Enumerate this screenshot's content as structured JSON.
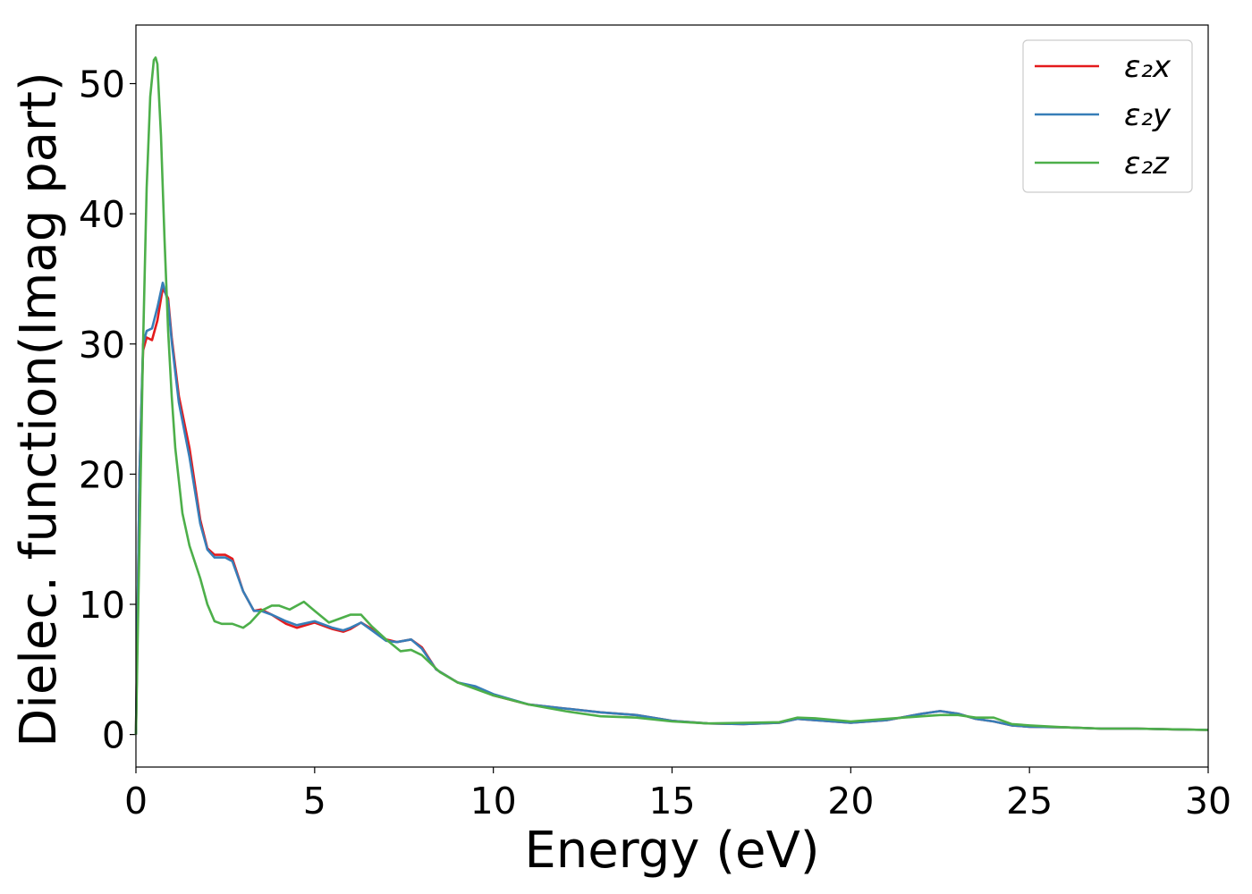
{
  "chart_data": {
    "type": "line",
    "title": "",
    "xlabel": "Energy (eV)",
    "ylabel": "Dielec. function(Imag part)",
    "xlim": [
      0,
      30
    ],
    "ylim": [
      -2.5,
      54.5
    ],
    "xticks": [
      0,
      5,
      10,
      15,
      20,
      25,
      30
    ],
    "xtick_labels": [
      "0",
      "5",
      "10",
      "15",
      "20",
      "25",
      "30"
    ],
    "yticks": [
      0,
      10,
      20,
      30,
      40,
      50
    ],
    "ytick_labels": [
      "0",
      "10",
      "20",
      "30",
      "40",
      "50"
    ],
    "grid": false,
    "legend_position": "top-right",
    "series": [
      {
        "name": "ε₂x",
        "color": "#e41a1c",
        "x": [
          0,
          0.1,
          0.2,
          0.3,
          0.45,
          0.6,
          0.75,
          0.9,
          1.0,
          1.2,
          1.5,
          1.8,
          2.0,
          2.2,
          2.5,
          2.7,
          3.0,
          3.3,
          3.5,
          3.8,
          4.2,
          4.5,
          5.0,
          5.5,
          5.8,
          6.0,
          6.3,
          6.6,
          7.0,
          7.3,
          7.7,
          8.0,
          8.4,
          9.0,
          9.5,
          10.0,
          11.0,
          12.0,
          13.0,
          14.0,
          15.0,
          16.0,
          17.0,
          18.0,
          18.5,
          19.0,
          20.0,
          21.0,
          22.0,
          22.5,
          23.0,
          23.5,
          24.0,
          24.5,
          25.0,
          26.0,
          27.0,
          28.0,
          29.0,
          30.0
        ],
        "y": [
          0,
          20,
          29.5,
          30.5,
          30.3,
          31.8,
          34.3,
          33.5,
          30.5,
          26,
          22,
          16.5,
          14.3,
          13.8,
          13.8,
          13.5,
          11,
          9.5,
          9.6,
          9.2,
          8.5,
          8.2,
          8.6,
          8.1,
          7.9,
          8.1,
          8.6,
          8.1,
          7.3,
          7.1,
          7.3,
          6.7,
          5.0,
          4.0,
          3.6,
          3.0,
          2.3,
          2.0,
          1.7,
          1.5,
          1.05,
          0.85,
          0.8,
          0.9,
          1.2,
          1.1,
          0.9,
          1.1,
          1.6,
          1.8,
          1.6,
          1.2,
          1.0,
          0.7,
          0.6,
          0.55,
          0.45,
          0.45,
          0.4,
          0.35
        ]
      },
      {
        "name": "ε₂y",
        "color": "#377eb8",
        "x": [
          0,
          0.1,
          0.2,
          0.3,
          0.45,
          0.6,
          0.75,
          0.9,
          1.0,
          1.2,
          1.5,
          1.8,
          2.0,
          2.2,
          2.5,
          2.7,
          3.0,
          3.3,
          3.5,
          3.8,
          4.2,
          4.5,
          5.0,
          5.5,
          5.8,
          6.0,
          6.3,
          6.6,
          7.0,
          7.3,
          7.7,
          8.0,
          8.4,
          9.0,
          9.5,
          10.0,
          11.0,
          12.0,
          13.0,
          14.0,
          15.0,
          16.0,
          17.0,
          18.0,
          18.5,
          19.0,
          20.0,
          21.0,
          22.0,
          22.5,
          23.0,
          23.5,
          24.0,
          24.5,
          25.0,
          26.0,
          27.0,
          28.0,
          29.0,
          30.0
        ],
        "y": [
          0,
          20,
          30,
          31,
          31.2,
          32.8,
          34.7,
          33.2,
          30.2,
          25.5,
          21.3,
          16.2,
          14.2,
          13.6,
          13.6,
          13.3,
          11,
          9.5,
          9.5,
          9.2,
          8.7,
          8.4,
          8.7,
          8.2,
          8.0,
          8.2,
          8.6,
          8.0,
          7.2,
          7.1,
          7.3,
          6.6,
          5.0,
          4.0,
          3.7,
          3.1,
          2.3,
          2.0,
          1.7,
          1.5,
          1.05,
          0.85,
          0.8,
          0.9,
          1.2,
          1.1,
          0.9,
          1.1,
          1.6,
          1.8,
          1.6,
          1.2,
          1.0,
          0.7,
          0.6,
          0.55,
          0.45,
          0.45,
          0.4,
          0.35
        ]
      },
      {
        "name": "ε₂z",
        "color": "#4daf4a",
        "x": [
          0,
          0.1,
          0.2,
          0.3,
          0.4,
          0.5,
          0.55,
          0.6,
          0.7,
          0.8,
          0.9,
          1.0,
          1.1,
          1.3,
          1.5,
          1.8,
          2.0,
          2.2,
          2.4,
          2.7,
          3.0,
          3.2,
          3.5,
          3.8,
          4.0,
          4.3,
          4.7,
          5.0,
          5.4,
          5.7,
          6.0,
          6.3,
          6.6,
          7.0,
          7.4,
          7.7,
          8.0,
          8.5,
          9.0,
          9.5,
          10.0,
          11.0,
          12.0,
          13.0,
          14.0,
          15.0,
          16.0,
          17.0,
          18.0,
          18.5,
          19.0,
          20.0,
          21.0,
          22.0,
          22.5,
          23.0,
          23.5,
          24.0,
          24.5,
          25.0,
          26.0,
          27.0,
          28.0,
          29.0,
          30.0
        ],
        "y": [
          0,
          15,
          30,
          42,
          49,
          51.8,
          52,
          51.5,
          46,
          38,
          31,
          26,
          22,
          17,
          14.5,
          12,
          10,
          8.7,
          8.5,
          8.5,
          8.2,
          8.6,
          9.5,
          9.9,
          9.9,
          9.6,
          10.2,
          9.5,
          8.6,
          8.9,
          9.2,
          9.2,
          8.3,
          7.3,
          6.4,
          6.5,
          6.1,
          4.8,
          4.0,
          3.5,
          3.0,
          2.3,
          1.8,
          1.4,
          1.3,
          1.0,
          0.85,
          0.9,
          0.95,
          1.3,
          1.25,
          1.0,
          1.2,
          1.4,
          1.5,
          1.5,
          1.3,
          1.3,
          0.8,
          0.7,
          0.55,
          0.45,
          0.45,
          0.4,
          0.35
        ]
      }
    ]
  }
}
